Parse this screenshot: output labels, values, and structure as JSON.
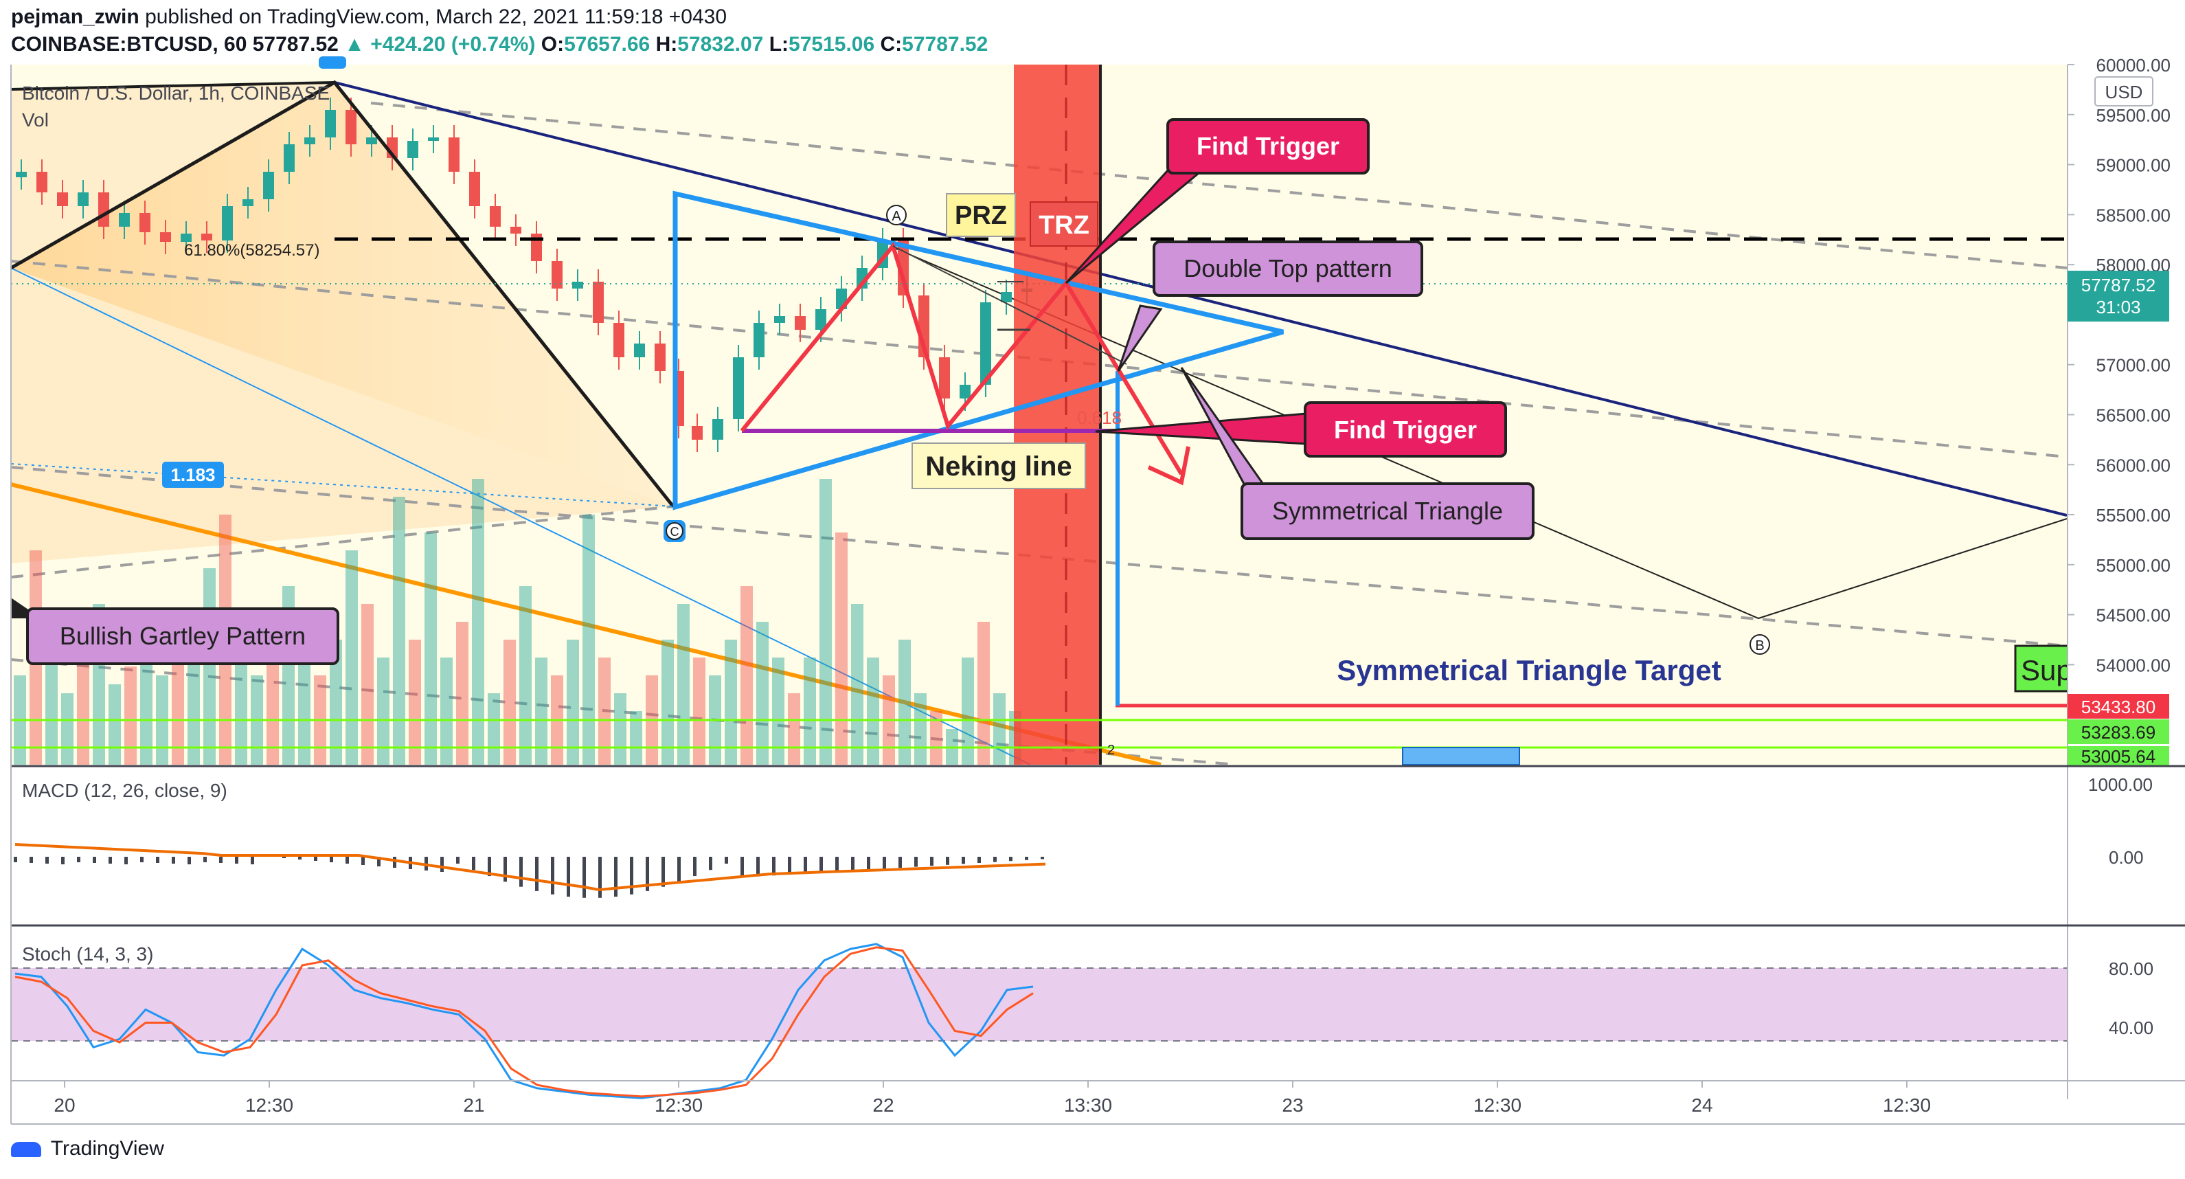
{
  "header": {
    "author": "pejman_zwin",
    "published_text": "published on TradingView.com, March 22, 2021 11:59:18 +0430",
    "symbol_line": "COINBASE:BTCUSD, 60",
    "last_price": "57787.52",
    "change": "▲ +424.20 (+0.74%)",
    "open_label": "O:",
    "open": "57657.66",
    "high_label": "H:",
    "high": "57832.07",
    "low_label": "L:",
    "low": "57515.06",
    "close_label": "C:",
    "close": "57787.52"
  },
  "legend": {
    "title": "Bitcoin / U.S. Dollar, 1h, COINBASE",
    "vol": "Vol",
    "macd": "MACD (12, 26, close, 9)",
    "stoch": "Stoch (14, 3, 3)"
  },
  "annotations": {
    "bullish_gartley": "Bullish Gartley Pattern",
    "fib_level": "61.80%(58254.57)",
    "ratio_badge": "1.183",
    "prz": "PRZ",
    "trz": "TRZ",
    "find_trigger_1": "Find Trigger",
    "find_trigger_2": "Find Trigger",
    "double_top": "Double Top pattern",
    "symmetrical_triangle": "Symmetrical Triangle",
    "neking_line": "Neking line",
    "fib_0618": "0.618",
    "sym_target": "Symmetrical Triangle Target",
    "sup_badge": "Sup",
    "point_a": "A",
    "point_b": "B",
    "point_c": "C",
    "small_2": "2"
  },
  "price_axis": {
    "currency": "USD",
    "ticks": [
      "60000.00",
      "59500.00",
      "59000.00",
      "58500.00",
      "58000.00",
      "57000.00",
      "56500.00",
      "56000.00",
      "55500.00",
      "55000.00",
      "54500.00",
      "54000.00"
    ],
    "last_price_badge": "57787.52",
    "countdown": "31:03",
    "level_red": "53433.80",
    "level_green_1": "53283.69",
    "level_green_2": "53005.64"
  },
  "macd_axis": {
    "ticks": [
      "1000.00",
      "0.00"
    ]
  },
  "stoch_axis": {
    "ticks": [
      "80.00",
      "40.00"
    ]
  },
  "time_axis": {
    "labels": [
      "20",
      "12:30",
      "21",
      "12:30",
      "22",
      "13:30",
      "23",
      "12:30",
      "24",
      "12:30"
    ]
  },
  "footer": {
    "brand": "TradingView"
  },
  "colors": {
    "up": "#26a69a",
    "down": "#ef5350",
    "red_line": "#f23645",
    "blue_tri": "#2196f3",
    "trz_fill": "#f44336",
    "callout_pink": "#e91e63",
    "callout_purple": "#ce93d8"
  },
  "chart_data": {
    "type": "candlestick",
    "title": "Bitcoin / U.S. Dollar, 1h, COINBASE",
    "symbol": "COINBASE:BTCUSD",
    "interval": "60",
    "ylim": [
      53000,
      60000
    ],
    "horizontal_levels": [
      {
        "value": 58254.57,
        "label": "61.80%(58254.57)",
        "style": "dashed-black"
      },
      {
        "value": 56300,
        "label": "Neking line",
        "style": "solid-purple"
      },
      {
        "value": 53433.8,
        "label": "53433.80",
        "style": "solid-red"
      },
      {
        "value": 53283.69,
        "label": "53283.69",
        "style": "solid-green"
      },
      {
        "value": 53005.64,
        "label": "53005.64",
        "style": "solid-green"
      }
    ],
    "last": 57787.52,
    "macd": {
      "params": "12, 26, close, 9",
      "ylim": [
        -600,
        1100
      ]
    },
    "stoch": {
      "params": "14, 3, 3",
      "upper": 80,
      "lower": 40
    }
  }
}
